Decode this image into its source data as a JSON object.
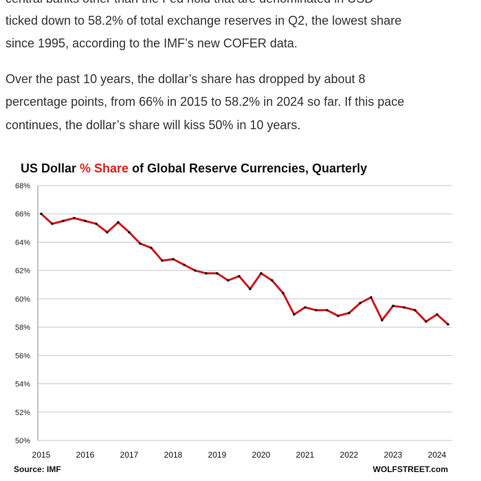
{
  "article": {
    "paragraphs": [
      [
        "central banks other than the Fed hold that are denominated in USD",
        "ticked down to 58.2% of total exchange reserves in Q2, the lowest share",
        "since 1995, according to the IMF’s new COFER data."
      ],
      [
        "Over the past 10 years, the dollar’s share has dropped by about 8",
        "percentage points, from 66% in 2015 to 58.2% in 2024 so far. If this pace",
        "continues, the dollar’s share will kiss 50% in 10 years."
      ]
    ]
  },
  "chart_data": {
    "type": "line",
    "title": [
      "US Dollar ",
      "% Share",
      " of Global Reserve Currencies, Quarterly"
    ],
    "title_colors": [
      "#111111",
      "#e0201b",
      "#111111"
    ],
    "source": "Source: IMF",
    "credit": "WOLFSTREET.com",
    "categories": [
      "2015",
      null,
      null,
      null,
      "2016",
      null,
      null,
      null,
      "2017",
      null,
      null,
      null,
      "2018",
      null,
      null,
      null,
      "2019",
      null,
      null,
      null,
      "2020",
      null,
      null,
      null,
      "2021",
      null,
      null,
      null,
      "2022",
      null,
      null,
      null,
      "2023",
      null,
      null,
      null,
      "2024",
      null
    ],
    "series": [
      {
        "name": "US Dollar % Share",
        "color": "#d0141a",
        "marker_color": "#111111",
        "values": [
          66.0,
          65.3,
          65.5,
          65.7,
          65.5,
          65.3,
          64.7,
          65.4,
          64.7,
          63.9,
          63.6,
          62.7,
          62.8,
          62.4,
          62.0,
          61.8,
          61.8,
          61.3,
          61.6,
          60.7,
          61.8,
          61.3,
          60.4,
          58.9,
          59.4,
          59.2,
          59.2,
          58.8,
          59.0,
          59.7,
          60.1,
          58.5,
          59.5,
          59.4,
          59.2,
          58.4,
          58.9,
          58.2
        ]
      }
    ],
    "ylim": [
      50,
      68
    ],
    "yticks": [
      {
        "value": 50,
        "label": "50%"
      },
      {
        "value": 52,
        "label": "52%"
      },
      {
        "value": 54,
        "label": "54%"
      },
      {
        "value": 56,
        "label": "56%"
      },
      {
        "value": 58,
        "label": "58%"
      },
      {
        "value": 60,
        "label": "60%"
      },
      {
        "value": 62,
        "label": "62%"
      },
      {
        "value": 64,
        "label": "64%"
      },
      {
        "value": 66,
        "label": "66%"
      },
      {
        "value": 68,
        "label": "68%"
      }
    ],
    "grid": true
  }
}
